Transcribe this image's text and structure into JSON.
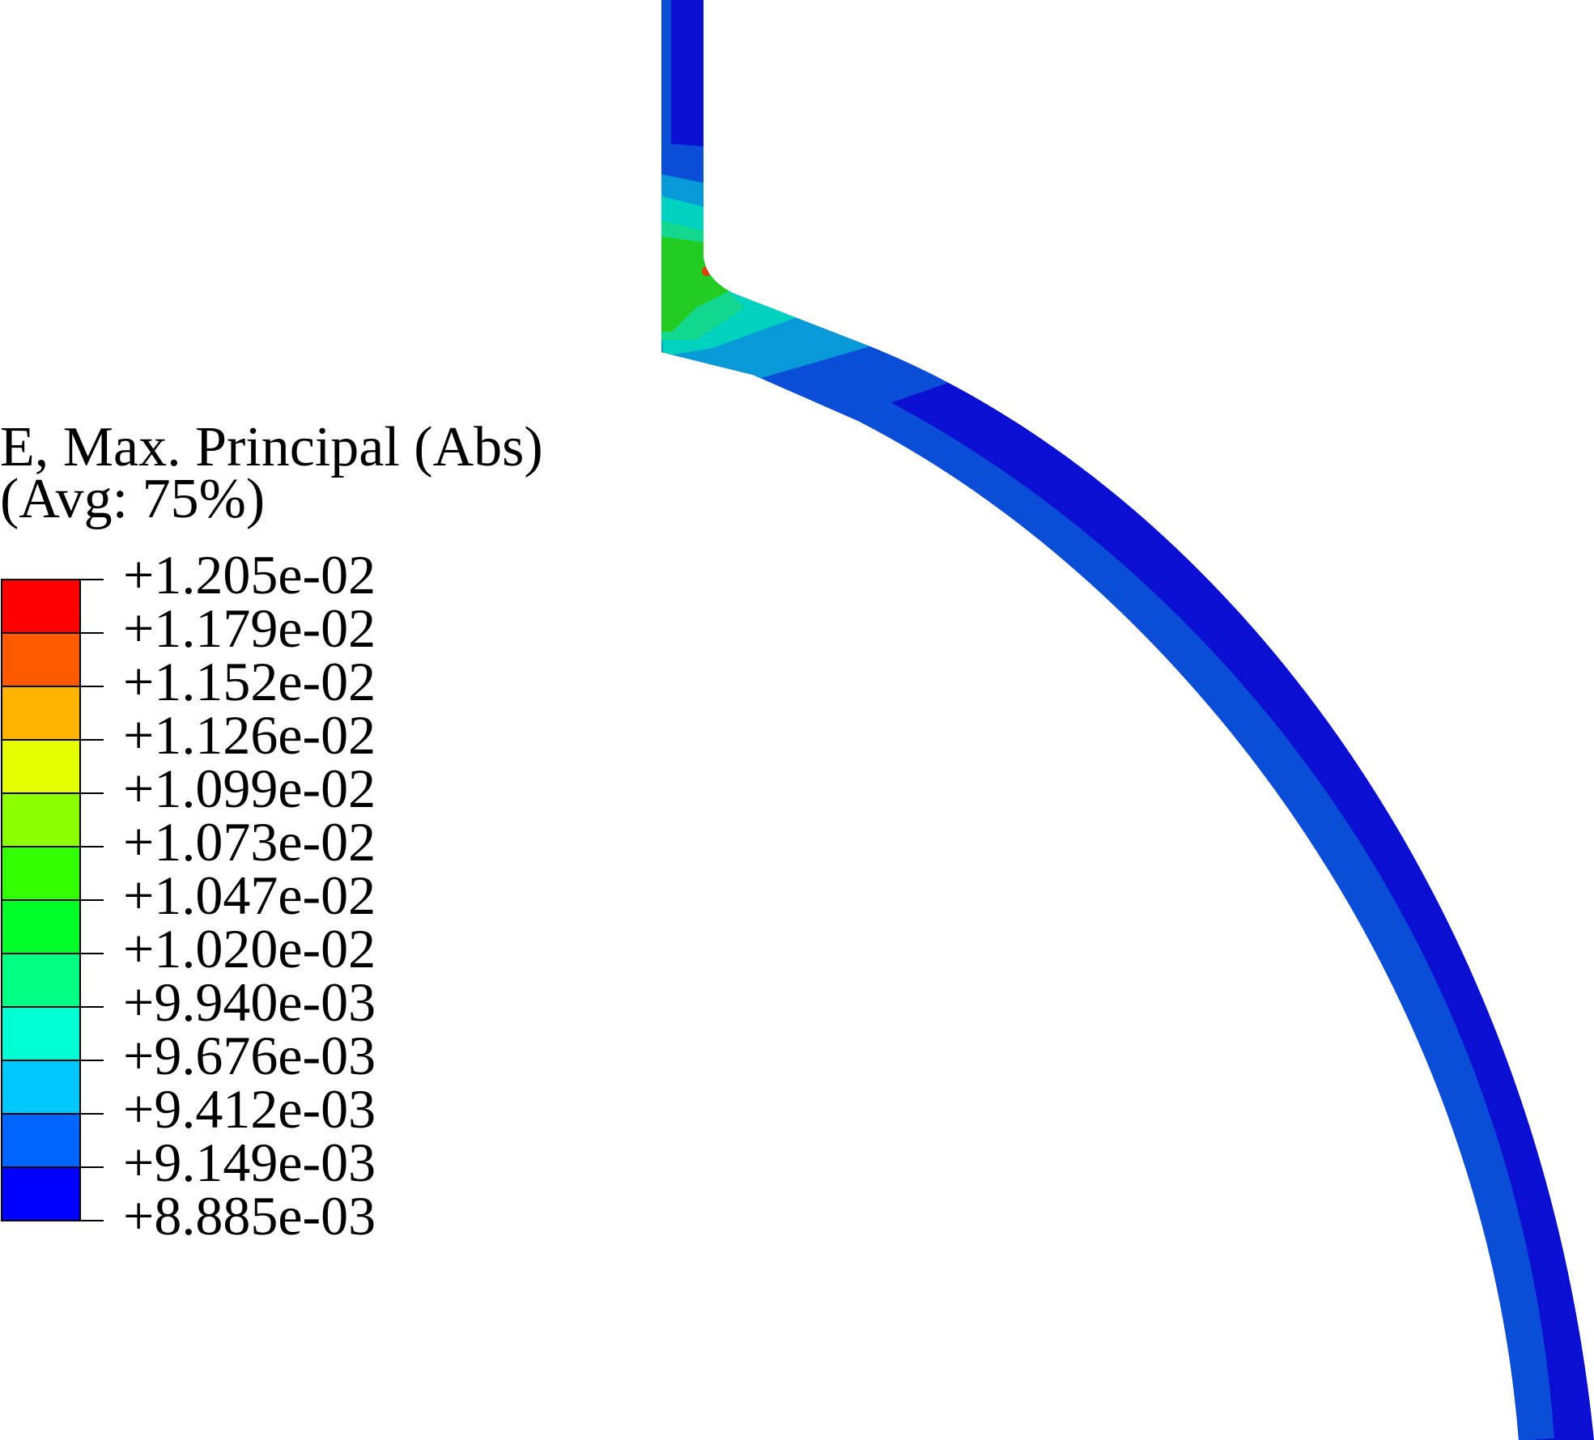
{
  "legend": {
    "title_line1": "E, Max. Principal (Abs)",
    "title_line2": "(Avg: 75%)"
  },
  "chart_data": {
    "type": "heatmap",
    "title": "E, Max. Principal (Abs)",
    "subtitle": "(Avg: 75%)",
    "legend_placement": "left",
    "levels": [
      "+1.205e-02",
      "+1.179e-02",
      "+1.152e-02",
      "+1.126e-02",
      "+1.099e-02",
      "+1.073e-02",
      "+1.047e-02",
      "+1.020e-02",
      "+9.940e-03",
      "+9.676e-03",
      "+9.412e-03",
      "+9.149e-03",
      "+8.885e-03"
    ],
    "level_values": [
      0.01205,
      0.01179,
      0.01152,
      0.01126,
      0.01099,
      0.01073,
      0.01047,
      0.0102,
      0.00994,
      0.009676,
      0.009412,
      0.009149,
      0.008885
    ],
    "band_colors": [
      "#ff0000",
      "#ff5a00",
      "#ffb400",
      "#e6ff00",
      "#8cff00",
      "#32ff00",
      "#00ff28",
      "#00ff82",
      "#00ffd2",
      "#00c8ff",
      "#0064ff",
      "#0000ff"
    ]
  }
}
